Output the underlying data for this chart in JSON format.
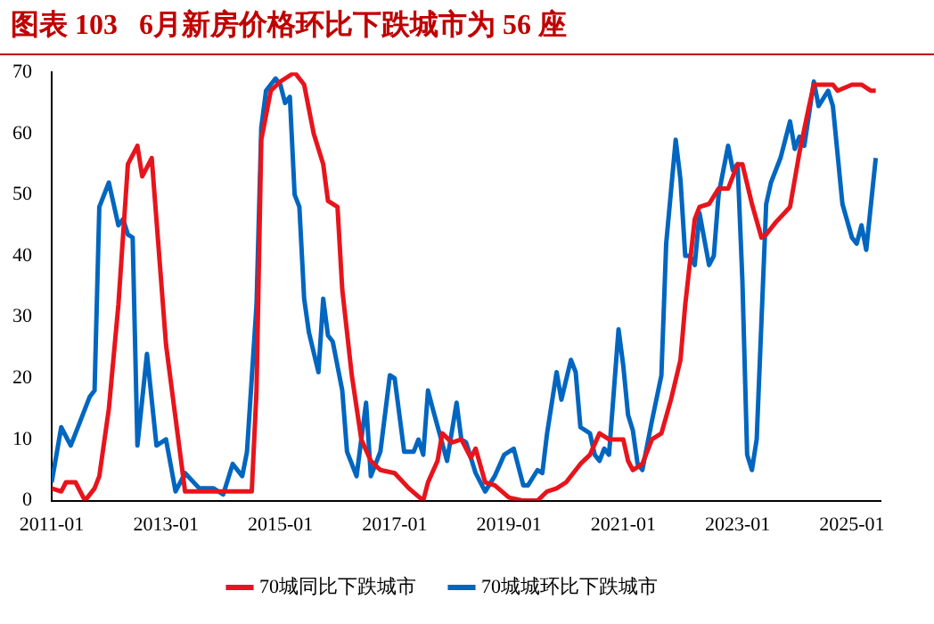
{
  "chart_data": {
    "type": "line",
    "title": "图表 103   6月新房价格环比下跌城市为 56 座",
    "xlim": [
      "2011-01",
      "2025-07"
    ],
    "xticks": [
      "2011-01",
      "2013-01",
      "2015-01",
      "2017-01",
      "2019-01",
      "2021-01",
      "2023-01",
      "2025-01"
    ],
    "ylim": [
      0,
      70
    ],
    "yticks": [
      0,
      10,
      20,
      30,
      40,
      50,
      60,
      70
    ],
    "grid": false,
    "legend": "bottom",
    "marker": "none",
    "line_style": "solid",
    "series": [
      {
        "name": "70城同比下跌城市",
        "color": "#e8141c",
        "x": [
          "2011-01",
          "2011-03",
          "2011-04",
          "2011-06",
          "2011-08",
          "2011-10",
          "2011-11",
          "2012-01",
          "2012-03",
          "2012-05",
          "2012-07",
          "2012-08",
          "2012-10",
          "2013-01",
          "2013-05",
          "2014-07",
          "2014-08",
          "2014-09",
          "2014-11",
          "2015-01",
          "2015-04",
          "2015-06",
          "2015-08",
          "2015-10",
          "2015-11",
          "2016-01",
          "2016-02",
          "2016-04",
          "2016-06",
          "2016-08",
          "2016-10",
          "2017-01",
          "2017-04",
          "2017-07",
          "2017-08",
          "2017-10",
          "2017-11",
          "2018-01",
          "2018-03",
          "2018-05",
          "2018-06",
          "2018-08",
          "2018-10",
          "2019-01",
          "2019-04",
          "2019-07",
          "2019-09",
          "2019-11",
          "2020-01",
          "2020-04",
          "2020-06",
          "2020-08",
          "2020-10",
          "2021-01",
          "2021-02",
          "2021-03",
          "2021-05",
          "2021-07",
          "2021-09",
          "2021-11",
          "2022-01",
          "2022-02",
          "2022-04",
          "2022-05",
          "2022-07",
          "2022-09",
          "2022-11",
          "2023-01",
          "2023-02",
          "2023-04",
          "2023-06",
          "2023-07",
          "2023-09",
          "2023-12",
          "2024-02",
          "2024-04",
          "2024-05",
          "2024-09",
          "2024-10",
          "2025-01",
          "2025-03",
          "2025-05",
          "2025-06"
        ],
        "values": [
          2,
          1.5,
          3,
          3,
          0,
          2,
          4,
          15,
          32,
          55,
          58,
          53,
          56,
          25.5,
          1.5,
          1.5,
          18,
          59,
          67,
          68.5,
          70,
          68,
          60,
          55,
          49,
          48,
          34.5,
          20.5,
          10,
          6.5,
          5,
          4.5,
          2,
          0,
          3,
          6.5,
          11,
          9.5,
          10,
          7,
          8.5,
          3,
          2.5,
          0.5,
          0,
          0,
          1.5,
          2,
          3,
          6,
          7.5,
          11,
          10,
          10,
          6.5,
          5,
          6,
          10,
          11,
          16.5,
          23,
          32,
          46,
          48,
          48.5,
          51,
          51,
          55,
          55,
          48.5,
          43,
          43.5,
          45.5,
          48,
          57,
          64.5,
          68,
          68,
          67,
          68,
          68,
          67,
          67
        ]
      },
      {
        "name": "70城城环比下跌城市",
        "color": "#0066c0",
        "x": [
          "2011-01",
          "2011-03",
          "2011-05",
          "2011-07",
          "2011-09",
          "2011-10",
          "2011-11",
          "2012-01",
          "2012-03",
          "2012-04",
          "2012-05",
          "2012-06",
          "2012-07",
          "2012-09",
          "2012-11",
          "2013-01",
          "2013-03",
          "2013-05",
          "2013-08",
          "2013-11",
          "2014-01",
          "2014-03",
          "2014-05",
          "2014-06",
          "2014-08",
          "2014-09",
          "2014-10",
          "2014-12",
          "2015-01",
          "2015-02",
          "2015-03",
          "2015-04",
          "2015-05",
          "2015-06",
          "2015-07",
          "2015-09",
          "2015-10",
          "2015-11",
          "2015-12",
          "2016-02",
          "2016-03",
          "2016-05",
          "2016-07",
          "2016-08",
          "2016-10",
          "2016-12",
          "2017-01",
          "2017-03",
          "2017-05",
          "2017-06",
          "2017-07",
          "2017-08",
          "2017-09",
          "2017-12",
          "2018-02",
          "2018-03",
          "2018-04",
          "2018-06",
          "2018-08",
          "2018-10",
          "2018-12",
          "2019-02",
          "2019-04",
          "2019-05",
          "2019-07",
          "2019-08",
          "2019-09",
          "2019-11",
          "2019-12",
          "2020-02",
          "2020-03",
          "2020-04",
          "2020-05",
          "2020-06",
          "2020-07",
          "2020-08",
          "2020-09",
          "2020-10",
          "2020-12",
          "2021-01",
          "2021-02",
          "2021-03",
          "2021-04",
          "2021-05",
          "2021-07",
          "2021-09",
          "2021-10",
          "2021-12",
          "2022-01",
          "2022-02",
          "2022-03",
          "2022-04",
          "2022-05",
          "2022-07",
          "2022-08",
          "2022-09",
          "2022-11",
          "2022-12",
          "2023-01",
          "2023-02",
          "2023-03",
          "2023-04",
          "2023-05",
          "2023-07",
          "2023-08",
          "2023-10",
          "2023-12",
          "2024-01",
          "2024-02",
          "2024-03",
          "2024-05",
          "2024-06",
          "2024-08",
          "2024-09",
          "2024-11",
          "2025-01",
          "2025-02",
          "2025-03",
          "2025-04",
          "2025-05",
          "2025-06"
        ],
        "values": [
          3,
          12,
          9,
          13,
          17,
          18,
          48,
          52,
          45,
          46,
          43.5,
          43,
          9,
          24,
          9,
          10,
          1.5,
          4.5,
          2,
          2,
          1,
          6,
          4,
          8,
          32,
          61,
          67,
          69,
          68,
          65,
          66,
          50,
          48,
          33,
          27.5,
          21,
          33,
          27,
          26,
          18,
          8,
          4,
          16,
          4,
          8,
          20.5,
          20,
          8,
          8,
          10,
          7.5,
          18,
          15,
          6.5,
          16,
          10,
          9.5,
          4.5,
          1.5,
          4,
          7.5,
          8.5,
          2.5,
          2.5,
          5,
          4.5,
          11,
          21,
          16.5,
          23,
          21,
          12,
          11.5,
          11,
          7.5,
          6.5,
          8.5,
          7.5,
          28,
          22,
          14,
          11.5,
          6,
          5,
          13,
          20.5,
          42,
          59,
          52.5,
          40,
          40,
          38.5,
          47,
          38.5,
          40,
          50,
          58,
          54,
          55,
          36,
          7.5,
          5,
          10,
          48.5,
          52,
          56,
          62,
          57.5,
          59.5,
          58,
          68.5,
          64.5,
          67,
          64.5,
          48.5,
          43,
          42,
          45,
          41,
          48.5,
          56
        ]
      }
    ]
  }
}
